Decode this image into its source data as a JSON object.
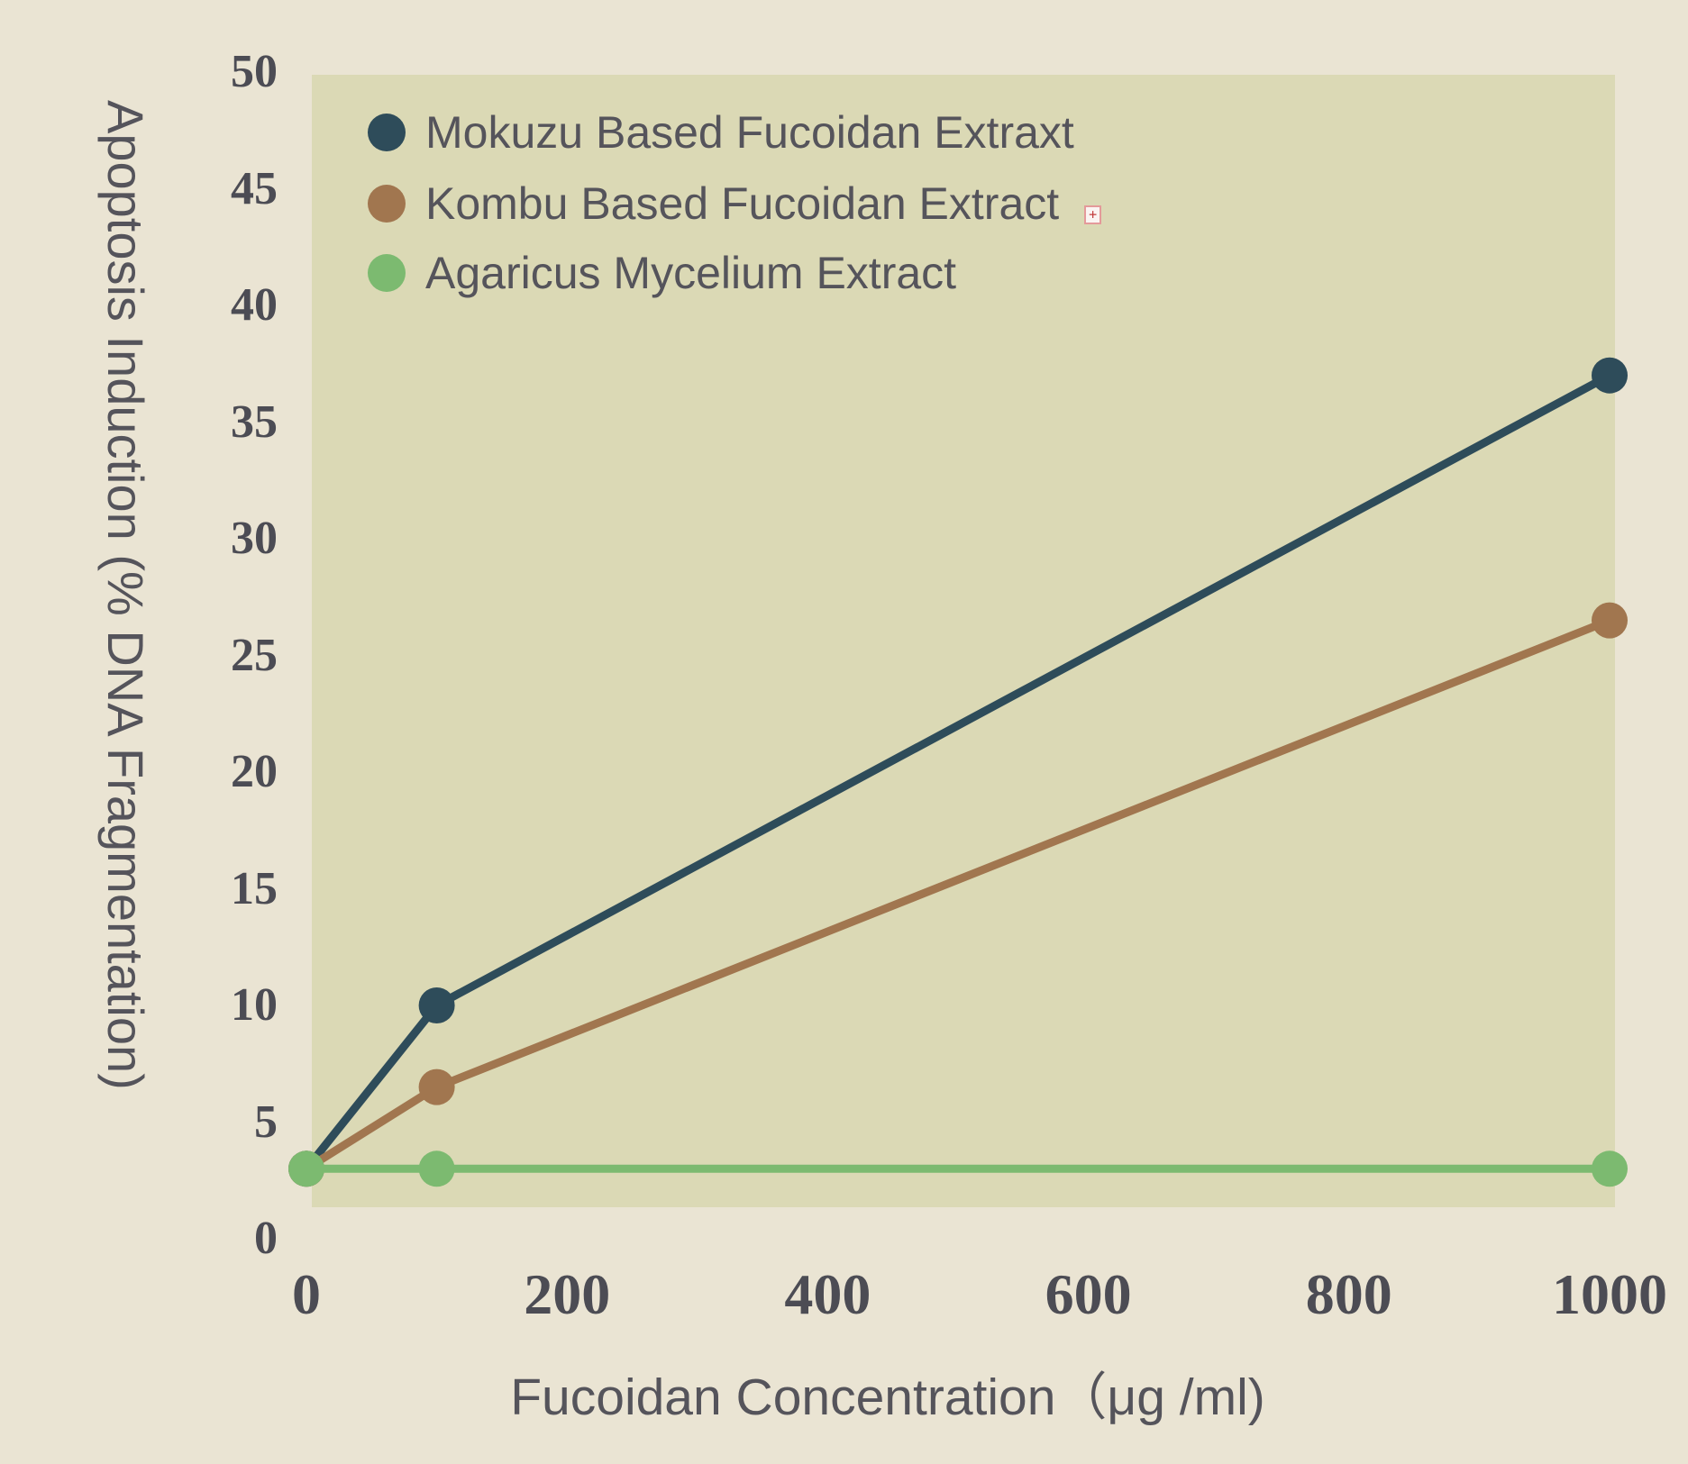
{
  "chart_data": {
    "type": "line",
    "title": "",
    "xlabel": "Fucoidan Concentration（μg /ml)",
    "ylabel": "Apoptosis Induction (% DNA Fragmentation)",
    "x": [
      0,
      100,
      1000
    ],
    "series": [
      {
        "name": "Mokuzu Based Fucoidan Extraxt",
        "color": "#2E4C5A",
        "values": [
          3,
          10,
          37
        ]
      },
      {
        "name": "Kombu Based Fucoidan Extract",
        "color": "#A1764F",
        "values": [
          3,
          6.5,
          26.5
        ]
      },
      {
        "name": "Agaricus Mycelium Extract",
        "color": "#7CBA70",
        "values": [
          3,
          3,
          3
        ]
      }
    ],
    "xlim": [
      0,
      1000
    ],
    "ylim": [
      0,
      50
    ],
    "x_ticks": [
      "0",
      "200",
      "400",
      "600",
      "800",
      "1000"
    ],
    "x_tick_values": [
      0,
      200,
      400,
      600,
      800,
      1000
    ],
    "y_ticks": [
      "0",
      "5",
      "10",
      "15",
      "20",
      "25",
      "30",
      "35",
      "40",
      "45",
      "50"
    ],
    "y_tick_values": [
      0,
      5,
      10,
      15,
      20,
      25,
      30,
      35,
      40,
      45,
      50
    ],
    "grid": false,
    "legend_position": "top-left"
  },
  "icons": {
    "broken_image_icon": "+"
  },
  "colors": {
    "background": "#EAE4D3",
    "plot_background": "#DBD9B5",
    "text": "#55545B",
    "tick_text": "#4C4C54",
    "series_mokuzu": "#2E4C5A",
    "series_kombu": "#A1764F",
    "series_agaricus": "#7CBA70"
  }
}
